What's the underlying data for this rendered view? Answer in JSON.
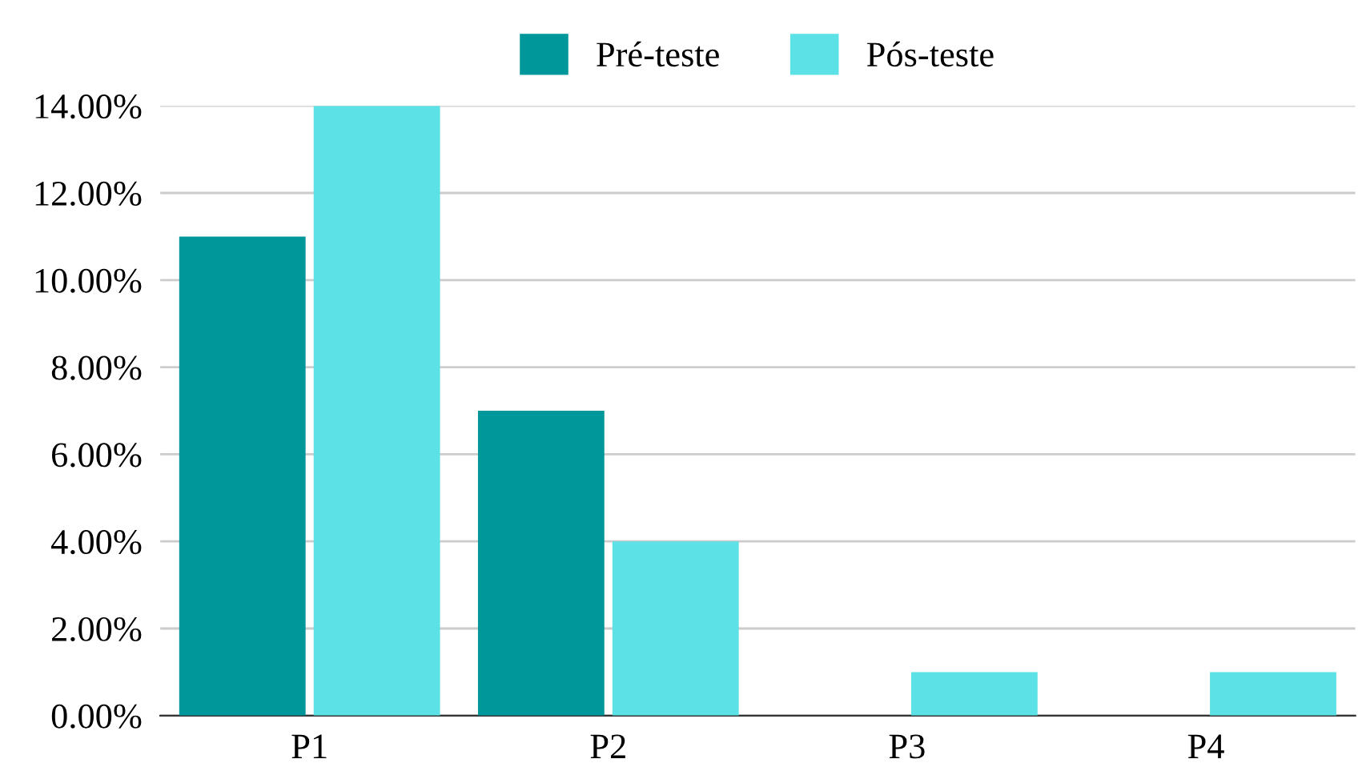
{
  "chart_data": {
    "type": "bar",
    "categories": [
      "P1",
      "P2",
      "P3",
      "P4"
    ],
    "series": [
      {
        "name": "Pré-teste",
        "color": "#00979b",
        "values": [
          11,
          7,
          0,
          0
        ]
      },
      {
        "name": "Pós-teste",
        "color": "#5ce1e6",
        "values": [
          14,
          4,
          1,
          1
        ]
      }
    ],
    "ylim": [
      0,
      14
    ],
    "yticks": [
      {
        "value": 0,
        "label": "0.00%"
      },
      {
        "value": 2,
        "label": "2.00%"
      },
      {
        "value": 4,
        "label": "4.00%"
      },
      {
        "value": 6,
        "label": "6.00%"
      },
      {
        "value": 8,
        "label": "8.00%"
      },
      {
        "value": 10,
        "label": "10.00%"
      },
      {
        "value": 12,
        "label": "12.00%"
      },
      {
        "value": 14,
        "label": "14.00%"
      }
    ],
    "grid": "y",
    "legend": "top"
  }
}
